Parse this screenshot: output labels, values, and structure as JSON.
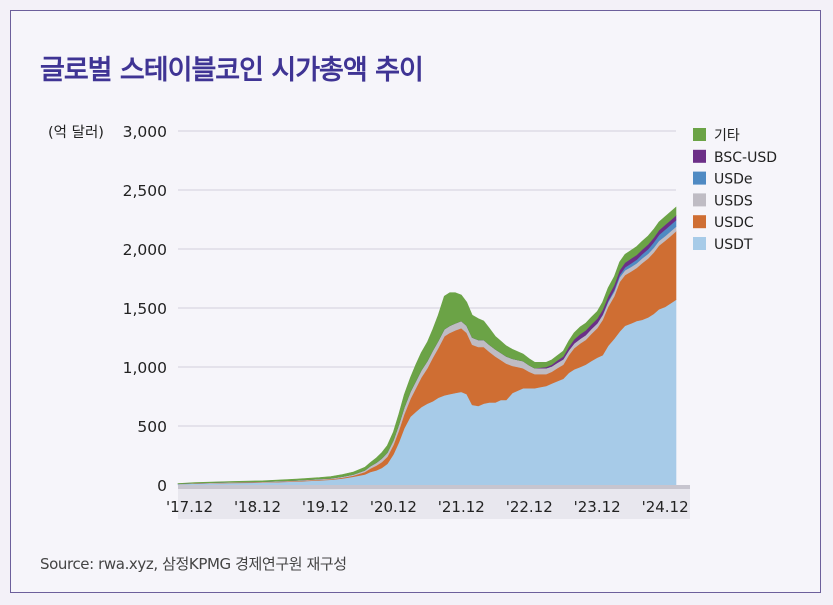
{
  "title": "글로벌 스테이블코인 시가총액 추이",
  "source": "Source: rwa.xyz, 삼정KPMG 경제연구원 재구성",
  "chart_data": {
    "type": "area",
    "stacked": true,
    "unit_label": "(억 달러)",
    "ylim": [
      0,
      3000
    ],
    "yticks": [
      0,
      500,
      1000,
      1500,
      2000,
      2500,
      3000
    ],
    "ytick_labels": [
      "0",
      "500",
      "1,000",
      "1,500",
      "2,000",
      "2,500",
      "3,000"
    ],
    "xlim": [
      2017.75,
      2025.08
    ],
    "xticks": [
      2017.92,
      2018.92,
      2019.92,
      2020.92,
      2021.92,
      2022.92,
      2023.92,
      2024.92
    ],
    "xtick_labels": [
      "'17.12",
      "'18.12",
      "'19.12",
      "'20.12",
      "'21.12",
      "'22.12",
      "'23.12",
      "'24.12"
    ],
    "grid": true,
    "legend_position": "top-right",
    "x": [
      2017.75,
      2018.0,
      2018.5,
      2019.0,
      2019.5,
      2019.83,
      2020.0,
      2020.17,
      2020.33,
      2020.5,
      2020.58,
      2020.67,
      2020.75,
      2020.83,
      2020.92,
      2021.0,
      2021.08,
      2021.17,
      2021.25,
      2021.33,
      2021.42,
      2021.5,
      2021.58,
      2021.67,
      2021.75,
      2021.83,
      2021.92,
      2022.0,
      2022.08,
      2022.17,
      2022.25,
      2022.33,
      2022.42,
      2022.5,
      2022.58,
      2022.67,
      2022.75,
      2022.83,
      2022.92,
      2023.0,
      2023.08,
      2023.17,
      2023.25,
      2023.33,
      2023.42,
      2023.5,
      2023.58,
      2023.67,
      2023.75,
      2023.83,
      2023.92,
      2024.0,
      2024.08,
      2024.17,
      2024.25,
      2024.33,
      2024.42,
      2024.5,
      2024.58,
      2024.67,
      2024.75,
      2024.83,
      2024.92,
      2025.0,
      2025.08
    ],
    "series": [
      {
        "name": "USDT",
        "color": "#a7cbe8",
        "values": [
          8,
          12,
          18,
          20,
          30,
          40,
          45,
          55,
          70,
          90,
          110,
          125,
          145,
          180,
          260,
          360,
          480,
          580,
          620,
          660,
          690,
          710,
          740,
          760,
          770,
          780,
          790,
          770,
          680,
          670,
          690,
          700,
          700,
          720,
          720,
          780,
          800,
          820,
          820,
          820,
          830,
          840,
          860,
          880,
          900,
          950,
          980,
          1000,
          1020,
          1050,
          1080,
          1100,
          1180,
          1240,
          1300,
          1350,
          1370,
          1390,
          1400,
          1420,
          1450,
          1490,
          1510,
          1540,
          1570
        ]
      },
      {
        "name": "USDC",
        "color": "#cf6e33",
        "values": [
          0,
          1,
          2,
          3,
          4,
          5,
          5,
          8,
          10,
          20,
          30,
          40,
          50,
          60,
          80,
          100,
          120,
          150,
          200,
          250,
          300,
          370,
          420,
          500,
          520,
          530,
          540,
          520,
          510,
          500,
          480,
          430,
          390,
          340,
          310,
          230,
          200,
          170,
          140,
          120,
          110,
          100,
          100,
          110,
          120,
          150,
          180,
          200,
          210,
          230,
          250,
          300,
          330,
          360,
          420,
          430,
          440,
          450,
          480,
          500,
          520,
          540,
          560,
          570,
          580
        ]
      },
      {
        "name": "USDS",
        "color": "#bfbcc4",
        "values": [
          2,
          3,
          4,
          5,
          6,
          6,
          7,
          8,
          10,
          15,
          20,
          25,
          30,
          35,
          40,
          50,
          55,
          60,
          60,
          60,
          60,
          60,
          60,
          60,
          60,
          60,
          60,
          60,
          60,
          60,
          60,
          60,
          60,
          60,
          60,
          60,
          60,
          60,
          55,
          50,
          50,
          50,
          45,
          45,
          45,
          40,
          40,
          40,
          40,
          40,
          40,
          40,
          40,
          40,
          40,
          40,
          40,
          40,
          40,
          40,
          40,
          40,
          40,
          40,
          40
        ]
      },
      {
        "name": "USDe",
        "color": "#4f8ac3",
        "values": [
          0,
          0,
          0,
          0,
          0,
          0,
          0,
          0,
          0,
          0,
          0,
          0,
          0,
          0,
          0,
          0,
          0,
          0,
          0,
          0,
          0,
          0,
          0,
          0,
          0,
          0,
          0,
          0,
          0,
          0,
          0,
          0,
          0,
          0,
          0,
          0,
          0,
          0,
          0,
          0,
          0,
          0,
          0,
          0,
          0,
          0,
          0,
          0,
          0,
          0,
          0,
          5,
          10,
          15,
          20,
          25,
          30,
          30,
          35,
          40,
          45,
          50,
          55,
          55,
          55
        ]
      },
      {
        "name": "BSC-USD",
        "color": "#6c2f87",
        "values": [
          0,
          0,
          0,
          0,
          0,
          0,
          0,
          0,
          0,
          0,
          0,
          0,
          0,
          0,
          0,
          0,
          0,
          0,
          0,
          0,
          0,
          0,
          0,
          0,
          0,
          0,
          0,
          0,
          0,
          0,
          0,
          0,
          0,
          0,
          0,
          0,
          0,
          0,
          0,
          0,
          5,
          10,
          15,
          20,
          25,
          30,
          35,
          40,
          40,
          40,
          40,
          40,
          40,
          40,
          40,
          40,
          40,
          40,
          40,
          40,
          40,
          40,
          40,
          40,
          40
        ]
      },
      {
        "name": "기타",
        "color": "#6ba346",
        "values": [
          3,
          4,
          6,
          8,
          10,
          12,
          15,
          18,
          20,
          25,
          30,
          40,
          50,
          60,
          70,
          90,
          110,
          120,
          140,
          150,
          160,
          180,
          220,
          280,
          280,
          260,
          220,
          200,
          190,
          180,
          160,
          140,
          110,
          100,
          90,
          80,
          70,
          60,
          55,
          50,
          45,
          40,
          40,
          40,
          45,
          50,
          55,
          60,
          60,
          60,
          60,
          65,
          70,
          70,
          70,
          70,
          70,
          70,
          70,
          70,
          70,
          70,
          70,
          70,
          70
        ]
      }
    ]
  }
}
